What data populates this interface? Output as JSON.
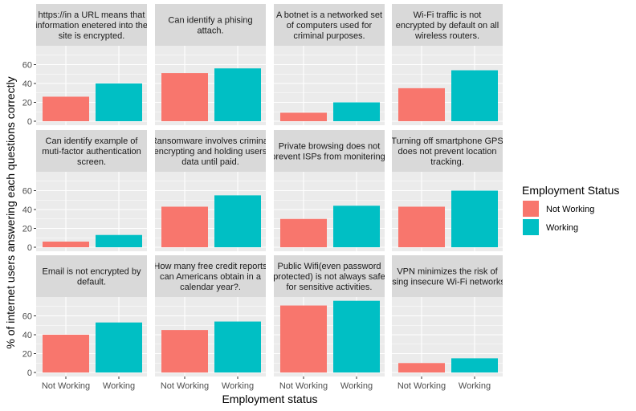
{
  "chart_data": {
    "type": "bar",
    "facet_layout": {
      "rows": 3,
      "cols": 4
    },
    "categories": [
      "Not Working",
      "Working"
    ],
    "xlabel": "Employment status",
    "ylabel": "% of internet users answering each questions correctly",
    "ylim": [
      0,
      80
    ],
    "yticks": [
      0,
      20,
      40,
      60
    ],
    "legend": {
      "title": "Employment Status",
      "placement": "right",
      "entries": [
        {
          "label": "Not Working",
          "color": "#F8766D"
        },
        {
          "label": "Working",
          "color": "#00BFC4"
        }
      ]
    },
    "panels": [
      {
        "title_lines": [
          "https://in a URL means that",
          "information enetered into the",
          "site is encrypted."
        ],
        "values": [
          26,
          40
        ]
      },
      {
        "title_lines": [
          "Can identify a phising",
          "attach."
        ],
        "values": [
          51,
          56
        ]
      },
      {
        "title_lines": [
          "A botnet is a networked set",
          "of computers used for",
          "criminal purposes."
        ],
        "values": [
          9,
          20
        ]
      },
      {
        "title_lines": [
          "Wi-Fi traffic is not",
          "encrypted by default on all",
          "wireless routers."
        ],
        "values": [
          35,
          54
        ]
      },
      {
        "title_lines": [
          "Can identify example of",
          "muti-factor authentication",
          "screen."
        ],
        "values": [
          6,
          13
        ]
      },
      {
        "title_lines": [
          "Ransomware involves criminal",
          "encrypting and holding users",
          "data until paid."
        ],
        "values": [
          43,
          55
        ]
      },
      {
        "title_lines": [
          "Private browsing does not",
          "prevent ISPs from monitering."
        ],
        "values": [
          30,
          44
        ]
      },
      {
        "title_lines": [
          "Turning off smartphone GPS",
          "does not prevent location",
          "tracking."
        ],
        "values": [
          43,
          60
        ]
      },
      {
        "title_lines": [
          "Email is not encrypted by",
          "default."
        ],
        "values": [
          40,
          53
        ]
      },
      {
        "title_lines": [
          "How many free credit reports",
          "can Americans obtain in a",
          "calendar year?."
        ],
        "values": [
          45,
          54
        ]
      },
      {
        "title_lines": [
          "Public Wifi(even password",
          "protected) is not always safe",
          "for sensitive activities."
        ],
        "values": [
          71,
          76
        ]
      },
      {
        "title_lines": [
          "VPN minimizes the risk of",
          "using insecure Wi-Fi networks."
        ],
        "values": [
          10,
          15
        ]
      }
    ]
  },
  "colors": {
    "panel_background": "#EBEBEB",
    "strip_background": "#D9D9D9",
    "grid": "#FFFFFF",
    "not_working": "#F8766D",
    "working": "#00BFC4"
  }
}
